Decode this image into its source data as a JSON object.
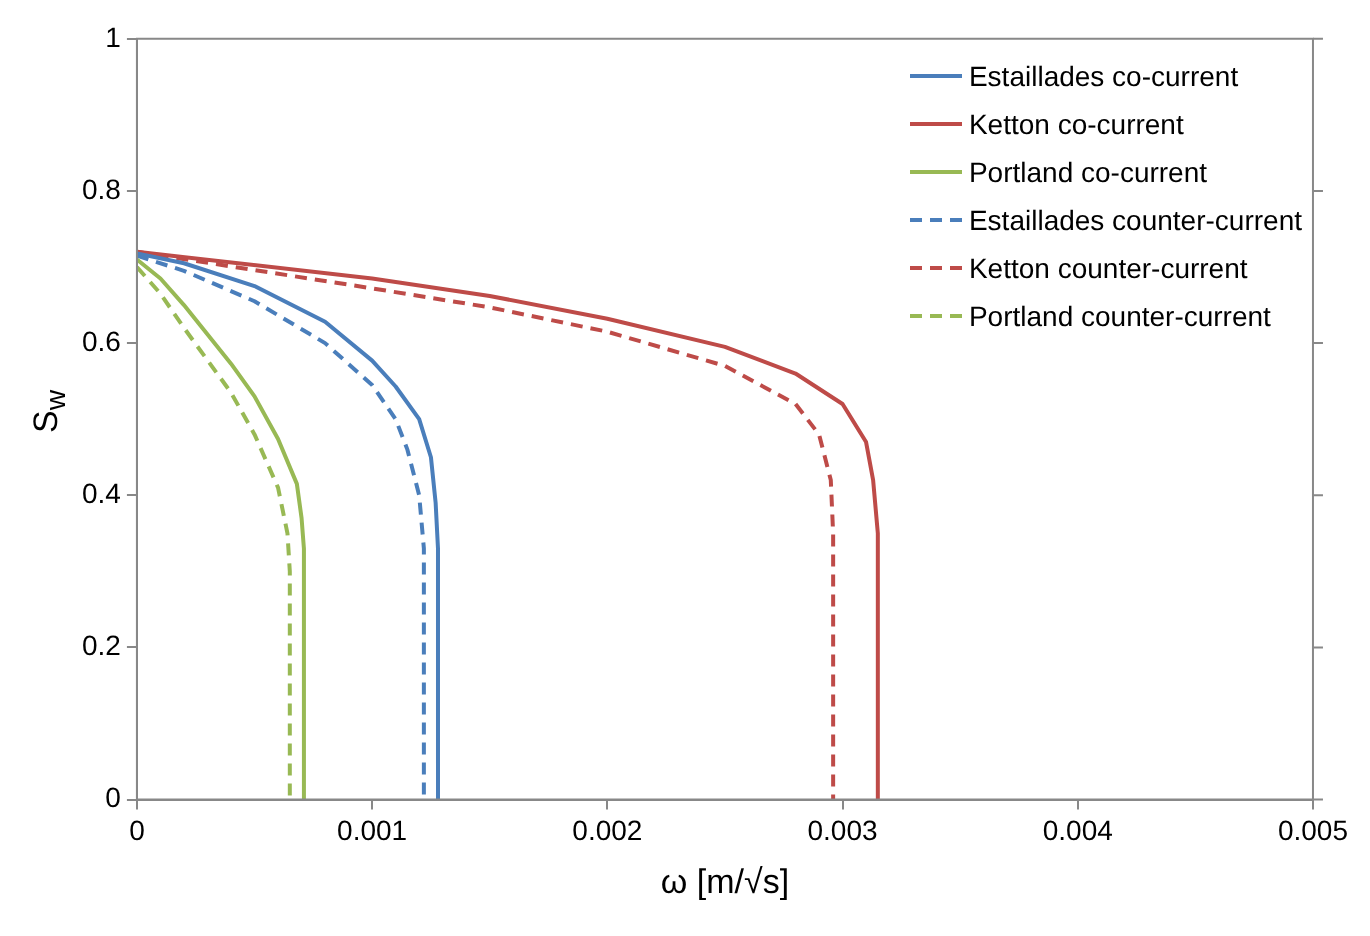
{
  "chart_data": {
    "type": "line",
    "xlabel": "ω [m/√s]",
    "ylabel": "S$_{w}$",
    "xlim": [
      0,
      0.005
    ],
    "xticks": [
      0,
      0.001,
      0.002,
      0.003,
      0.004,
      0.005
    ],
    "ylim": [
      0,
      1
    ],
    "yticks": [
      0,
      0.2,
      0.4,
      0.6,
      0.8,
      1
    ],
    "grid": false,
    "legend": "top right",
    "marker": "none",
    "series": [
      {
        "name": "Estaillades co-current",
        "color": "#4a7ebb",
        "line_style": "solid",
        "x": [
          0,
          0.0002,
          0.0005,
          0.0008,
          0.001,
          0.0011,
          0.0012,
          0.00125,
          0.00127,
          0.00128,
          0.00128
        ],
        "values": [
          0.718,
          0.705,
          0.675,
          0.628,
          0.577,
          0.543,
          0.5,
          0.45,
          0.39,
          0.33,
          0
        ]
      },
      {
        "name": "Ketton co-current",
        "color": "#be4b48",
        "line_style": "solid",
        "x": [
          0,
          0.001,
          0.0015,
          0.002,
          0.0025,
          0.0028,
          0.003,
          0.0031,
          0.00313,
          0.00315,
          0.00315
        ],
        "values": [
          0.72,
          0.685,
          0.662,
          0.632,
          0.595,
          0.56,
          0.52,
          0.47,
          0.42,
          0.35,
          0
        ]
      },
      {
        "name": "Portland co-current",
        "color": "#98b954",
        "line_style": "solid",
        "x": [
          0,
          0.0001,
          0.0002,
          0.0004,
          0.0005,
          0.0006,
          0.00068,
          0.0007,
          0.00071,
          0.00071
        ],
        "values": [
          0.71,
          0.685,
          0.65,
          0.573,
          0.53,
          0.474,
          0.415,
          0.37,
          0.33,
          0
        ]
      },
      {
        "name": "Estaillades counter-current",
        "color": "#4a7ebb",
        "line_style": "dashed",
        "x": [
          0,
          0.0002,
          0.0005,
          0.0008,
          0.001,
          0.0011,
          0.00115,
          0.0012,
          0.00122,
          0.00122
        ],
        "values": [
          0.715,
          0.695,
          0.655,
          0.6,
          0.545,
          0.5,
          0.46,
          0.4,
          0.33,
          0
        ]
      },
      {
        "name": "Ketton counter-current",
        "color": "#be4b48",
        "line_style": "dashed",
        "x": [
          0,
          0.001,
          0.0015,
          0.002,
          0.0025,
          0.0028,
          0.0029,
          0.00295,
          0.00296,
          0.00296
        ],
        "values": [
          0.72,
          0.672,
          0.647,
          0.615,
          0.57,
          0.52,
          0.48,
          0.42,
          0.35,
          0
        ]
      },
      {
        "name": "Portland counter-current",
        "color": "#98b954",
        "line_style": "dashed",
        "x": [
          0,
          0.0001,
          0.0002,
          0.0004,
          0.0005,
          0.0006,
          0.00064,
          0.00065,
          0.00065
        ],
        "values": [
          0.7,
          0.665,
          0.62,
          0.535,
          0.48,
          0.41,
          0.35,
          0.3,
          0
        ]
      }
    ]
  }
}
